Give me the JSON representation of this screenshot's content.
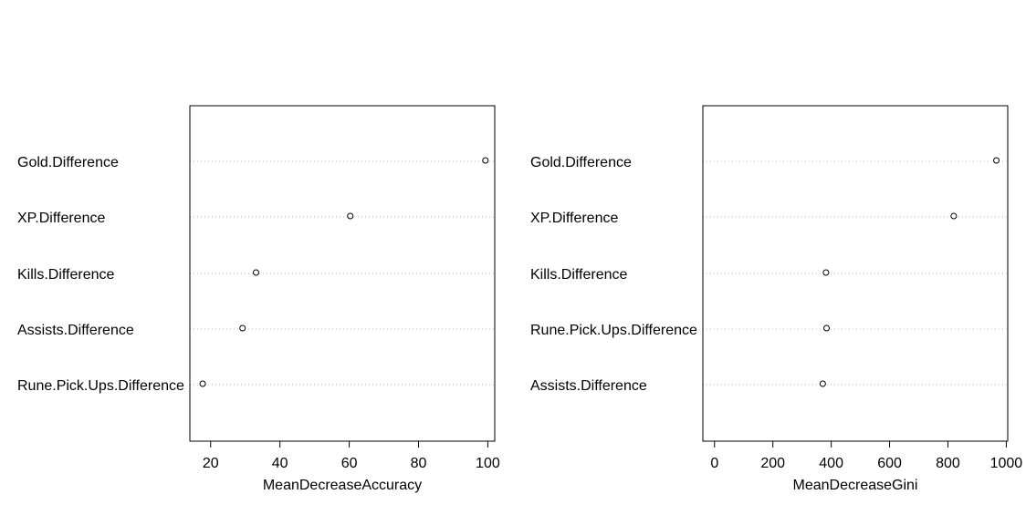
{
  "chart_data": [
    {
      "type": "scatter",
      "style": "dotchart",
      "xlabel": "MeanDecreaseAccuracy",
      "xlim": [
        14,
        102
      ],
      "xticks": [
        20,
        40,
        60,
        80,
        100
      ],
      "categories": [
        "Gold.Difference",
        "XP.Difference",
        "Kills.Difference",
        "Assists.Difference",
        "Rune.Pick.Ups.Difference"
      ],
      "values": [
        99.3,
        60.3,
        33.1,
        29.2,
        17.7
      ],
      "grid": "dotted horizontal"
    },
    {
      "type": "scatter",
      "style": "dotchart",
      "xlabel": "MeanDecreaseGini",
      "xlim": [
        -40,
        1005
      ],
      "xticks": [
        0,
        200,
        400,
        600,
        800,
        1000
      ],
      "categories": [
        "Gold.Difference",
        "XP.Difference",
        "Kills.Difference",
        "Rune.Pick.Ups.Difference",
        "Assists.Difference"
      ],
      "values": [
        966,
        820,
        382,
        384,
        371
      ],
      "grid": "dotted horizontal"
    }
  ]
}
